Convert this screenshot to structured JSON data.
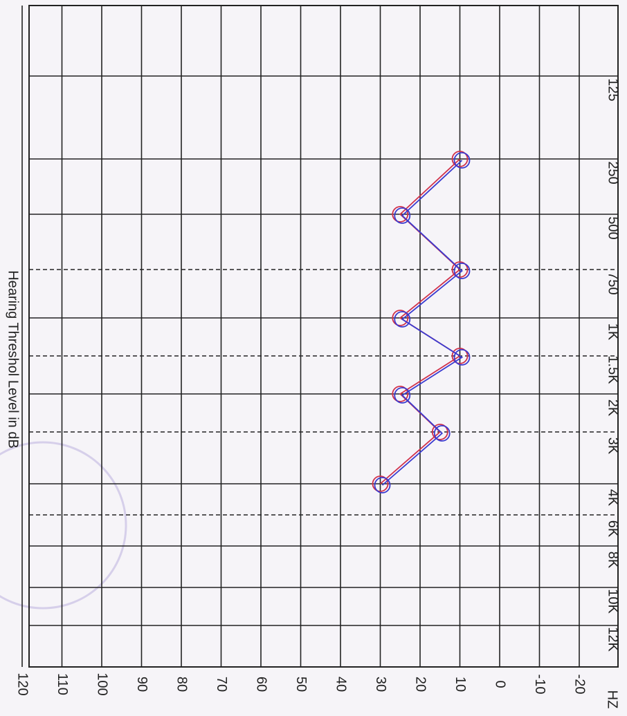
{
  "chart_data": {
    "type": "line",
    "x_label": "Hearing Threshol Level in dB",
    "y_label": "HZ",
    "categories": [
      "125",
      "250",
      "500",
      "750",
      "1K",
      "1.5K",
      "2K",
      "3K",
      "4K",
      "6K",
      "8K",
      "10K",
      "12K"
    ],
    "series": [
      {
        "color": "#d0304a",
        "values": [
          null,
          10,
          25,
          10,
          25,
          10,
          25,
          15,
          30,
          null,
          null,
          null,
          null
        ]
      },
      {
        "color": "#3a3ad0",
        "values": [
          null,
          10,
          25,
          10,
          25,
          10,
          25,
          15,
          30,
          null,
          null,
          null,
          null
        ]
      }
    ],
    "xlim": [
      -20,
      120
    ],
    "xticks": [
      -20,
      -10,
      0,
      10,
      20,
      30,
      40,
      50,
      60,
      70,
      80,
      90,
      100,
      110,
      120
    ],
    "grid": true
  }
}
